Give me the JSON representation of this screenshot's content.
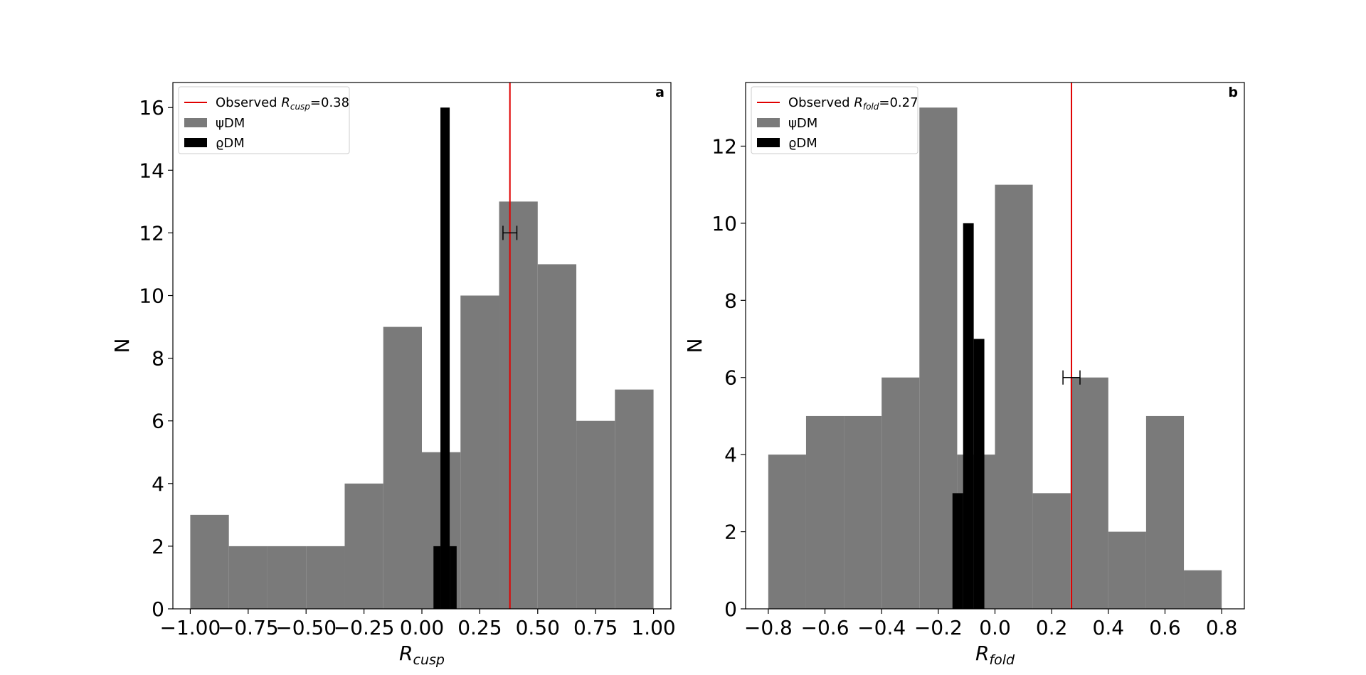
{
  "colors": {
    "psi": "#7a7a7a",
    "rho": "#000000",
    "observed": "#e00000"
  },
  "chart_data": [
    {
      "type": "bar",
      "panel_label": "a",
      "xlabel": "R",
      "xlabel_sub": "cusp",
      "ylabel": "N",
      "xlim": [
        -1.075,
        1.075
      ],
      "ylim": [
        0,
        16.8
      ],
      "xticks": [
        -1.0,
        -0.75,
        -0.5,
        -0.25,
        0.0,
        0.25,
        0.5,
        0.75,
        1.0
      ],
      "xtick_labels": [
        "−1.00",
        "−0.75",
        "−0.50",
        "−0.25",
        "0.00",
        "0.25",
        "0.50",
        "0.75",
        "1.00"
      ],
      "yticks": [
        0,
        2,
        4,
        6,
        8,
        10,
        12,
        14,
        16
      ],
      "ytick_labels": [
        "0",
        "2",
        "4",
        "6",
        "8",
        "10",
        "12",
        "14",
        "16"
      ],
      "legend": {
        "location": "upper-left",
        "observed_prefix": "Observed ",
        "observed_var": "R",
        "observed_sub": "cusp",
        "observed_value": "=0.38",
        "psi_label": "ψDM",
        "rho_label": "ϱDM"
      },
      "observed_line_x": 0.38,
      "errorbar": {
        "x": 0.38,
        "y": 12,
        "xerr": 0.03
      },
      "series": [
        {
          "name": "ψDM",
          "bin_edges": [
            -1.0,
            -0.8333,
            -0.6667,
            -0.5,
            -0.3333,
            -0.1667,
            0.0,
            0.1667,
            0.3333,
            0.5,
            0.6667,
            0.8333,
            1.0
          ],
          "counts": [
            3,
            2,
            2,
            2,
            4,
            9,
            5,
            10,
            13,
            11,
            6,
            7
          ]
        },
        {
          "name": "ϱDM",
          "bin_edges": [
            0.05,
            0.08,
            0.12,
            0.15
          ],
          "counts": [
            2,
            16,
            2
          ]
        }
      ]
    },
    {
      "type": "bar",
      "panel_label": "b",
      "xlabel": "R",
      "xlabel_sub": "fold",
      "ylabel": "N",
      "xlim": [
        -0.88,
        0.88
      ],
      "ylim": [
        0,
        13.65
      ],
      "xticks": [
        -0.8,
        -0.6,
        -0.4,
        -0.2,
        0.0,
        0.2,
        0.4,
        0.6,
        0.8
      ],
      "xtick_labels": [
        "−0.8",
        "−0.6",
        "−0.4",
        "−0.2",
        "0.0",
        "0.2",
        "0.4",
        "0.6",
        "0.8"
      ],
      "yticks": [
        0,
        2,
        4,
        6,
        8,
        10,
        12
      ],
      "ytick_labels": [
        "0",
        "2",
        "4",
        "6",
        "8",
        "10",
        "12"
      ],
      "legend": {
        "location": "upper-left",
        "observed_prefix": "Observed ",
        "observed_var": "R",
        "observed_sub": "fold",
        "observed_value": "=0.27",
        "psi_label": "ψDM",
        "rho_label": "ϱDM"
      },
      "observed_line_x": 0.27,
      "errorbar": {
        "x": 0.27,
        "y": 6,
        "xerr": 0.03
      },
      "series": [
        {
          "name": "ψDM",
          "bin_edges": [
            -0.8,
            -0.6667,
            -0.5333,
            -0.4,
            -0.2667,
            -0.1333,
            0.0,
            0.1333,
            0.2667,
            0.4,
            0.5333,
            0.6667,
            0.8
          ],
          "counts": [
            4,
            5,
            5,
            6,
            13,
            4,
            11,
            3,
            6,
            2,
            5,
            1
          ]
        },
        {
          "name": "ϱDM",
          "bin_edges": [
            -0.15,
            -0.1125,
            -0.075,
            -0.0375,
            0.0
          ],
          "counts": [
            3,
            10,
            7,
            0
          ]
        }
      ]
    }
  ]
}
